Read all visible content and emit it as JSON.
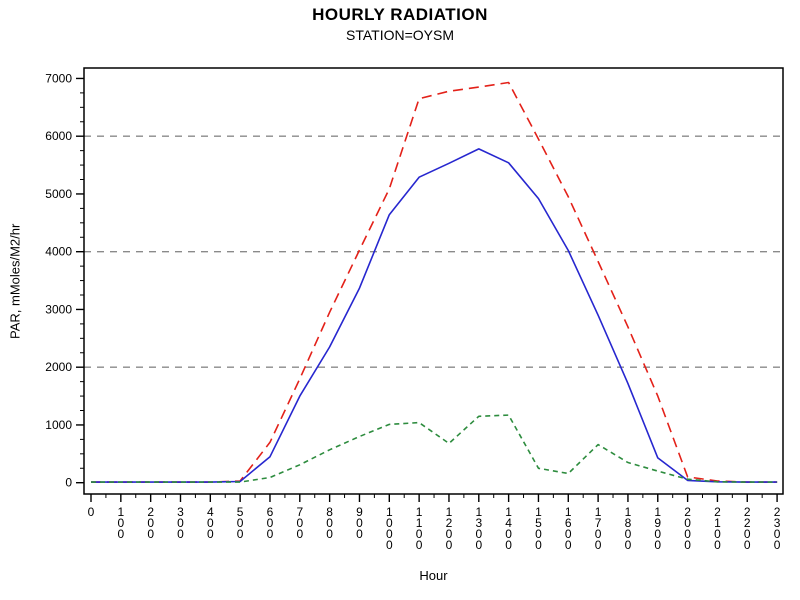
{
  "page": {
    "title": "HOURLY RADIATION",
    "subtitle": "STATION=OYSM"
  },
  "chart_data": {
    "type": "line",
    "title": "HOURLY RADIATION",
    "subtitle": "STATION=OYSM",
    "xlabel": "Hour",
    "ylabel": "PAR, mMoles/M2/hr",
    "xlim": [
      0,
      2300
    ],
    "ylim": [
      0,
      7000
    ],
    "grid": "dashed horizontal at 2000/4000/6000",
    "legend_position": "none",
    "grid_color": "#8a8a8a",
    "frame_color": "#000000",
    "x": [
      0,
      100,
      200,
      300,
      400,
      500,
      600,
      700,
      800,
      900,
      1000,
      1100,
      1200,
      1300,
      1400,
      1500,
      1600,
      1700,
      1800,
      1900,
      2000,
      2100,
      2200,
      2300
    ],
    "x_tick_labels": [
      "0",
      "100",
      "200",
      "300",
      "400",
      "500",
      "600",
      "700",
      "800",
      "900",
      "1000",
      "1100",
      "1200",
      "1300",
      "1400",
      "1500",
      "1600",
      "1700",
      "1800",
      "1900",
      "2000",
      "2100",
      "2200",
      "2300"
    ],
    "y_major_ticks": [
      0,
      1000,
      2000,
      3000,
      4000,
      5000,
      6000,
      7000
    ],
    "y_minor_step": 250,
    "x_minor_step": 50,
    "gridlines_y": [
      2000,
      4000,
      6000
    ],
    "series": [
      {
        "name": "total-radiation-red-dashed",
        "color": "#e32119",
        "line_style": "dashed",
        "values": [
          10,
          10,
          10,
          10,
          10,
          30,
          700,
          1800,
          2950,
          4030,
          5090,
          6650,
          6780,
          6850,
          6930,
          5950,
          4950,
          3830,
          2700,
          1500,
          100,
          30,
          10,
          10
        ]
      },
      {
        "name": "par-blue-solid",
        "color": "#2727cf",
        "line_style": "solid",
        "values": [
          10,
          10,
          10,
          10,
          10,
          20,
          450,
          1500,
          2350,
          3370,
          4640,
          5290,
          5530,
          5780,
          5540,
          4920,
          4020,
          2900,
          1720,
          430,
          40,
          15,
          10,
          10
        ]
      },
      {
        "name": "diffuse-green-shortdash",
        "color": "#2d8c3e",
        "line_style": "short-dash",
        "values": [
          10,
          10,
          10,
          10,
          10,
          10,
          90,
          310,
          570,
          800,
          1010,
          1040,
          680,
          1150,
          1170,
          250,
          160,
          660,
          350,
          200,
          60,
          15,
          10,
          10
        ]
      }
    ]
  }
}
